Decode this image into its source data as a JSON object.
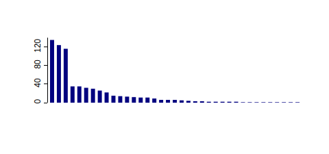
{
  "chart_data": {
    "type": "bar",
    "categories": [
      null,
      null,
      null,
      null,
      null,
      null,
      null,
      null,
      null,
      null,
      null,
      null,
      null,
      null,
      null,
      null,
      null,
      null,
      null,
      null,
      null,
      null,
      null,
      null,
      null,
      null,
      null,
      null,
      null,
      null,
      null,
      null,
      null,
      null,
      null,
      null,
      null
    ],
    "values": [
      135,
      124,
      116,
      35,
      35,
      32,
      30,
      26,
      22,
      15,
      14,
      13,
      12,
      11,
      11,
      9,
      6,
      6,
      6,
      5,
      4,
      3,
      3,
      2,
      2,
      2,
      2,
      2,
      1,
      1,
      1,
      1,
      1,
      1,
      1,
      1,
      1
    ],
    "color": "#00007f",
    "ylim": [
      0,
      140
    ],
    "yticks": [
      0,
      40,
      80,
      120
    ],
    "grid": false,
    "tick_labels": "y"
  }
}
